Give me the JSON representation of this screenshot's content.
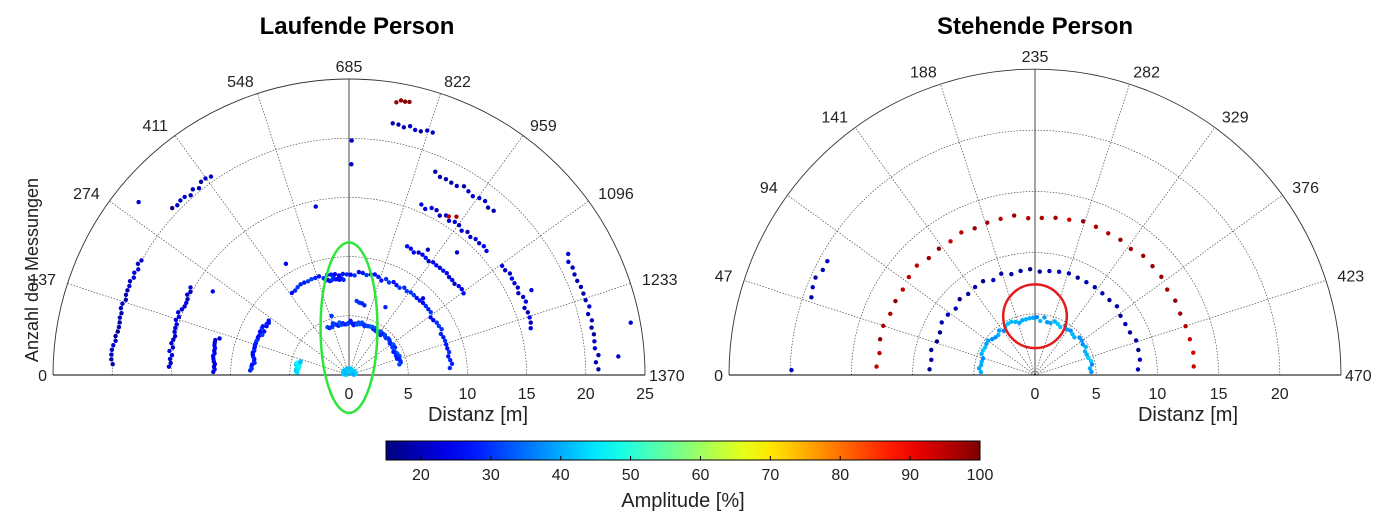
{
  "chart_data": [
    {
      "type": "scatter",
      "subtype": "polar-half",
      "title": "Laufende Person",
      "xlabel": "Distanz [m]",
      "ylabel": "Anzahl der Messungen",
      "r_range": [
        0,
        25
      ],
      "r_ticks": [
        "0",
        "5",
        "10",
        "15",
        "20",
        "25"
      ],
      "angle_ticks": [
        "0",
        "137",
        "274",
        "411",
        "548",
        "685",
        "822",
        "959",
        "1096",
        "1233",
        "1370"
      ],
      "angle_range": [
        0,
        1370
      ],
      "grid": true,
      "annotation": {
        "shape": "ellipse",
        "color": "#2ee63a",
        "center": [
          0,
          4.0
        ],
        "radii": [
          2.4,
          7.2
        ]
      },
      "clusters": [
        {
          "r": 0.4,
          "a0": 30,
          "a1": 1340,
          "n": 90,
          "amp": 42
        },
        {
          "r": 4.4,
          "a0": 20,
          "a1": 120,
          "n": 18,
          "amp": 45
        },
        {
          "r": 4.4,
          "a0": 500,
          "a1": 1280,
          "n": 60,
          "amp": 30
        },
        {
          "r": 8.2,
          "a0": 20,
          "a1": 260,
          "n": 28,
          "amp": 28
        },
        {
          "r": 8.6,
          "a0": 420,
          "a1": 1340,
          "n": 55,
          "amp": 28
        },
        {
          "r": 8.2,
          "a0": 580,
          "a1": 660,
          "n": 10,
          "amp": 28
        },
        {
          "r": 11.5,
          "a0": 10,
          "a1": 120,
          "n": 14,
          "amp": 24
        },
        {
          "r": 11.8,
          "a0": 870,
          "a1": 1100,
          "n": 18,
          "amp": 24
        },
        {
          "r": 15.2,
          "a0": 20,
          "a1": 220,
          "n": 22,
          "amp": 22
        },
        {
          "r": 15.6,
          "a0": 860,
          "a1": 1050,
          "n": 16,
          "amp": 22
        },
        {
          "r": 16.0,
          "a0": 1100,
          "a1": 1260,
          "n": 14,
          "amp": 22
        },
        {
          "r": 20.0,
          "a0": 20,
          "a1": 220,
          "n": 24,
          "amp": 20
        },
        {
          "r": 20.4,
          "a0": 330,
          "a1": 420,
          "n": 10,
          "amp": 20
        },
        {
          "r": 21.0,
          "a0": 1150,
          "a1": 1360,
          "n": 18,
          "amp": 20
        },
        {
          "r": 21.6,
          "a0": 760,
          "a1": 830,
          "n": 8,
          "amp": 20
        },
        {
          "r": 18.5,
          "a0": 860,
          "a1": 1000,
          "n": 12,
          "amp": 20
        },
        {
          "r": 23.5,
          "a0": 760,
          "a1": 780,
          "n": 4,
          "amp": 98
        },
        {
          "r": 16.0,
          "a0": 930,
          "a1": 945,
          "n": 2,
          "amp": 95
        },
        {
          "r": 6.2,
          "a0": 730,
          "a1": 780,
          "n": 4,
          "amp": 28
        }
      ],
      "points": [
        {
          "r": 23.0,
          "a": 300,
          "amp": 22
        },
        {
          "r": 24.2,
          "a": 1290,
          "amp": 22
        },
        {
          "r": 22.8,
          "a": 1340,
          "amp": 22
        },
        {
          "r": 17.8,
          "a": 690,
          "amp": 22
        },
        {
          "r": 19.8,
          "a": 690,
          "amp": 22
        },
        {
          "r": 13.5,
          "a": 240,
          "amp": 24
        },
        {
          "r": 14.5,
          "a": 600,
          "amp": 22
        },
        {
          "r": 12.5,
          "a": 930,
          "amp": 22
        },
        {
          "r": 10.8,
          "a": 460,
          "amp": 24
        },
        {
          "r": 5.2,
          "a": 560,
          "amp": 30
        },
        {
          "r": 6.5,
          "a": 900,
          "amp": 28
        },
        {
          "r": 9.0,
          "a": 1020,
          "amp": 24
        },
        {
          "r": 13.8,
          "a": 1000,
          "amp": 22
        },
        {
          "r": 17.0,
          "a": 1180,
          "amp": 22
        }
      ]
    },
    {
      "type": "scatter",
      "subtype": "polar-half",
      "title": "Stehende Person",
      "xlabel": "Distanz [m]",
      "ylabel": "",
      "r_range": [
        0,
        25
      ],
      "r_ticks": [
        "0",
        "5",
        "10",
        "15",
        "20"
      ],
      "angle_ticks": [
        "0",
        "47",
        "94",
        "141",
        "188",
        "235",
        "282",
        "329",
        "376",
        "423",
        "470"
      ],
      "angle_range": [
        0,
        470
      ],
      "grid": true,
      "annotation": {
        "shape": "circle",
        "color": "#e41a1c",
        "center": [
          0,
          4.8
        ],
        "radii": [
          2.6,
          2.6
        ]
      },
      "clusters": [
        {
          "r": 4.6,
          "a0": 8,
          "a1": 462,
          "n": 48,
          "amp": 40
        },
        {
          "r": 8.6,
          "a0": 8,
          "a1": 462,
          "n": 34,
          "amp": 18
        },
        {
          "r": 13.0,
          "a0": 8,
          "a1": 462,
          "n": 36,
          "amp": 96
        },
        {
          "r": 19.5,
          "a0": 50,
          "a1": 75,
          "n": 5,
          "amp": 20
        }
      ],
      "points": [
        {
          "r": 19.9,
          "a": 3,
          "amp": 20
        }
      ]
    }
  ],
  "colorbar": {
    "label": "Amplitude [%]",
    "ticks": [
      "20",
      "30",
      "40",
      "50",
      "60",
      "70",
      "80",
      "90",
      "100"
    ],
    "range": [
      15,
      100
    ],
    "colormap": "jet"
  },
  "colors": {
    "grid": "#333333",
    "axis": "#000000",
    "text": "#222222"
  }
}
